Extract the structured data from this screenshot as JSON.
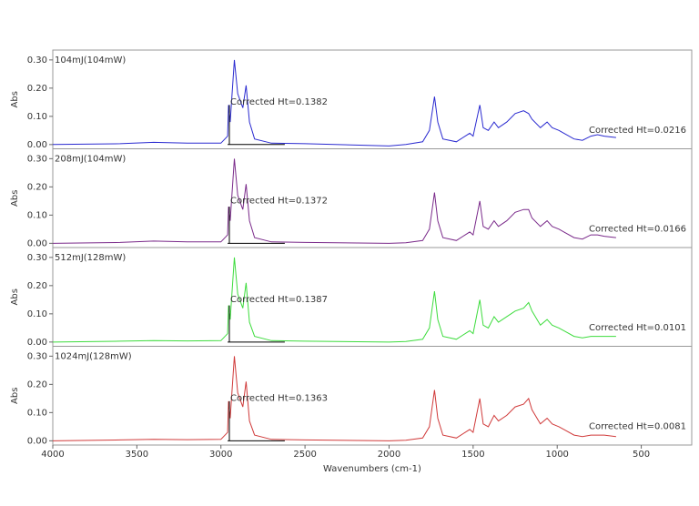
{
  "chart_data": [
    {
      "type": "line",
      "title": "104mJ(104mW)",
      "ylabel": "Abs",
      "annotations": [
        "Corrected Ht=0.1382",
        "Corrected Ht=0.0216"
      ],
      "xlim": [
        4000,
        200
      ],
      "ylim": [
        -0.015,
        0.335
      ],
      "yticks": [
        {
          "value": 0,
          "label": "0.00"
        },
        {
          "value": 0.1,
          "label": "0.10"
        },
        {
          "value": 0.2,
          "label": "0.20"
        },
        {
          "value": 0.3,
          "label": "0.30"
        }
      ],
      "series": [
        {
          "color": "#2a2ad0",
          "x": [
            4000,
            3600,
            3400,
            3200,
            3000,
            2960,
            2955,
            2945,
            2920,
            2900,
            2870,
            2850,
            2830,
            2800,
            2700,
            2500,
            2000,
            1900,
            1800,
            1760,
            1730,
            1710,
            1680,
            1600,
            1520,
            1500,
            1460,
            1440,
            1410,
            1375,
            1350,
            1300,
            1250,
            1200,
            1170,
            1150,
            1100,
            1060,
            1030,
            990,
            960,
            900,
            850,
            800,
            760,
            720,
            650
          ],
          "values": [
            0,
            0.003,
            0.008,
            0.005,
            0.005,
            0.03,
            0.14,
            0.08,
            0.3,
            0.18,
            0.13,
            0.21,
            0.08,
            0.02,
            0.005,
            0.003,
            -0.005,
            0,
            0.01,
            0.05,
            0.17,
            0.08,
            0.02,
            0.01,
            0.04,
            0.03,
            0.14,
            0.06,
            0.05,
            0.08,
            0.06,
            0.08,
            0.11,
            0.12,
            0.11,
            0.09,
            0.06,
            0.08,
            0.06,
            0.05,
            0.04,
            0.02,
            0.015,
            0.03,
            0.035,
            0.03,
            0.025
          ]
        },
        {
          "color": "#000000",
          "x": [
            2960,
            2950,
            2950,
            2950,
            2620
          ],
          "values": [
            0,
            0,
            0.14,
            0,
            0
          ]
        }
      ]
    },
    {
      "type": "line",
      "title": "208mJ(104mW)",
      "ylabel": "Abs",
      "annotations": [
        "Corrected Ht=0.1372",
        "Corrected Ht=0.0166"
      ],
      "xlim": [
        4000,
        200
      ],
      "ylim": [
        -0.015,
        0.335
      ],
      "yticks": [
        {
          "value": 0,
          "label": "0.00"
        },
        {
          "value": 0.1,
          "label": "0.10"
        },
        {
          "value": 0.2,
          "label": "0.20"
        },
        {
          "value": 0.3,
          "label": "0.30"
        }
      ],
      "series": [
        {
          "color": "#7a2a8a",
          "x": [
            4000,
            3600,
            3400,
            3200,
            3000,
            2960,
            2955,
            2945,
            2920,
            2900,
            2870,
            2850,
            2830,
            2800,
            2700,
            2500,
            2000,
            1900,
            1800,
            1760,
            1730,
            1710,
            1680,
            1600,
            1520,
            1500,
            1460,
            1440,
            1410,
            1375,
            1350,
            1300,
            1250,
            1200,
            1170,
            1150,
            1100,
            1060,
            1030,
            990,
            960,
            900,
            850,
            800,
            760,
            720,
            650
          ],
          "values": [
            0,
            0.003,
            0.008,
            0.005,
            0.005,
            0.03,
            0.13,
            0.08,
            0.3,
            0.17,
            0.12,
            0.21,
            0.08,
            0.02,
            0.005,
            0.003,
            0,
            0.002,
            0.01,
            0.05,
            0.18,
            0.08,
            0.02,
            0.01,
            0.04,
            0.03,
            0.15,
            0.06,
            0.05,
            0.08,
            0.06,
            0.08,
            0.11,
            0.12,
            0.12,
            0.09,
            0.06,
            0.08,
            0.06,
            0.05,
            0.04,
            0.02,
            0.015,
            0.03,
            0.03,
            0.025,
            0.02
          ]
        },
        {
          "color": "#000000",
          "x": [
            2960,
            2950,
            2950,
            2950,
            2620
          ],
          "values": [
            0,
            0,
            0.13,
            0,
            0
          ]
        }
      ]
    },
    {
      "type": "line",
      "title": "512mJ(128mW)",
      "ylabel": "Abs",
      "annotations": [
        "Corrected Ht=0.1387",
        "Corrected Ht=0.0101"
      ],
      "xlim": [
        4000,
        200
      ],
      "ylim": [
        -0.015,
        0.335
      ],
      "yticks": [
        {
          "value": 0,
          "label": "0.00"
        },
        {
          "value": 0.1,
          "label": "0.10"
        },
        {
          "value": 0.2,
          "label": "0.20"
        },
        {
          "value": 0.3,
          "label": "0.30"
        }
      ],
      "series": [
        {
          "color": "#3ddc3d",
          "x": [
            4000,
            3600,
            3400,
            3200,
            3000,
            2960,
            2955,
            2945,
            2920,
            2900,
            2870,
            2850,
            2830,
            2800,
            2700,
            2500,
            2000,
            1900,
            1800,
            1760,
            1730,
            1710,
            1680,
            1600,
            1520,
            1500,
            1460,
            1440,
            1410,
            1375,
            1350,
            1300,
            1250,
            1200,
            1170,
            1150,
            1100,
            1060,
            1030,
            990,
            960,
            900,
            850,
            800,
            760,
            720,
            650
          ],
          "values": [
            0,
            0.003,
            0.005,
            0.004,
            0.005,
            0.03,
            0.13,
            0.08,
            0.3,
            0.17,
            0.12,
            0.21,
            0.07,
            0.02,
            0.005,
            0.003,
            0,
            0.002,
            0.01,
            0.05,
            0.18,
            0.08,
            0.02,
            0.01,
            0.04,
            0.03,
            0.15,
            0.06,
            0.05,
            0.09,
            0.07,
            0.09,
            0.11,
            0.12,
            0.14,
            0.11,
            0.06,
            0.08,
            0.06,
            0.05,
            0.04,
            0.02,
            0.015,
            0.02,
            0.02,
            0.02,
            0.02
          ]
        },
        {
          "color": "#000000",
          "x": [
            2960,
            2950,
            2950,
            2950,
            2620
          ],
          "values": [
            0,
            0,
            0.13,
            0,
            0
          ]
        }
      ]
    },
    {
      "type": "line",
      "title": "1024mJ(128mW)",
      "ylabel": "Abs",
      "annotations": [
        "Corrected Ht=0.1363",
        "Corrected Ht=0.0081"
      ],
      "xlim": [
        4000,
        200
      ],
      "ylim": [
        -0.015,
        0.335
      ],
      "yticks": [
        {
          "value": 0,
          "label": "0.00"
        },
        {
          "value": 0.1,
          "label": "0.10"
        },
        {
          "value": 0.2,
          "label": "0.20"
        },
        {
          "value": 0.3,
          "label": "0.30"
        }
      ],
      "xticks": [
        4000,
        3500,
        3000,
        2500,
        2000,
        1500,
        1000,
        500
      ],
      "xlabel": "Wavenumbers (cm-1)",
      "series": [
        {
          "color": "#d03a3a",
          "x": [
            4000,
            3600,
            3400,
            3200,
            3000,
            2960,
            2955,
            2945,
            2920,
            2900,
            2870,
            2850,
            2830,
            2800,
            2700,
            2500,
            2000,
            1900,
            1800,
            1760,
            1730,
            1710,
            1680,
            1600,
            1520,
            1500,
            1460,
            1440,
            1410,
            1375,
            1350,
            1300,
            1250,
            1200,
            1170,
            1150,
            1100,
            1060,
            1030,
            990,
            960,
            900,
            850,
            800,
            760,
            720,
            650
          ],
          "values": [
            0,
            0.003,
            0.005,
            0.004,
            0.005,
            0.03,
            0.14,
            0.08,
            0.3,
            0.17,
            0.12,
            0.21,
            0.07,
            0.02,
            0.005,
            0.003,
            0,
            0.002,
            0.01,
            0.05,
            0.18,
            0.08,
            0.02,
            0.01,
            0.04,
            0.03,
            0.15,
            0.06,
            0.05,
            0.09,
            0.07,
            0.09,
            0.12,
            0.13,
            0.15,
            0.11,
            0.06,
            0.08,
            0.06,
            0.05,
            0.04,
            0.02,
            0.015,
            0.02,
            0.02,
            0.02,
            0.015
          ]
        },
        {
          "color": "#000000",
          "x": [
            2960,
            2950,
            2950,
            2950,
            2620
          ],
          "values": [
            0,
            0,
            0.14,
            0,
            0
          ]
        }
      ]
    }
  ]
}
